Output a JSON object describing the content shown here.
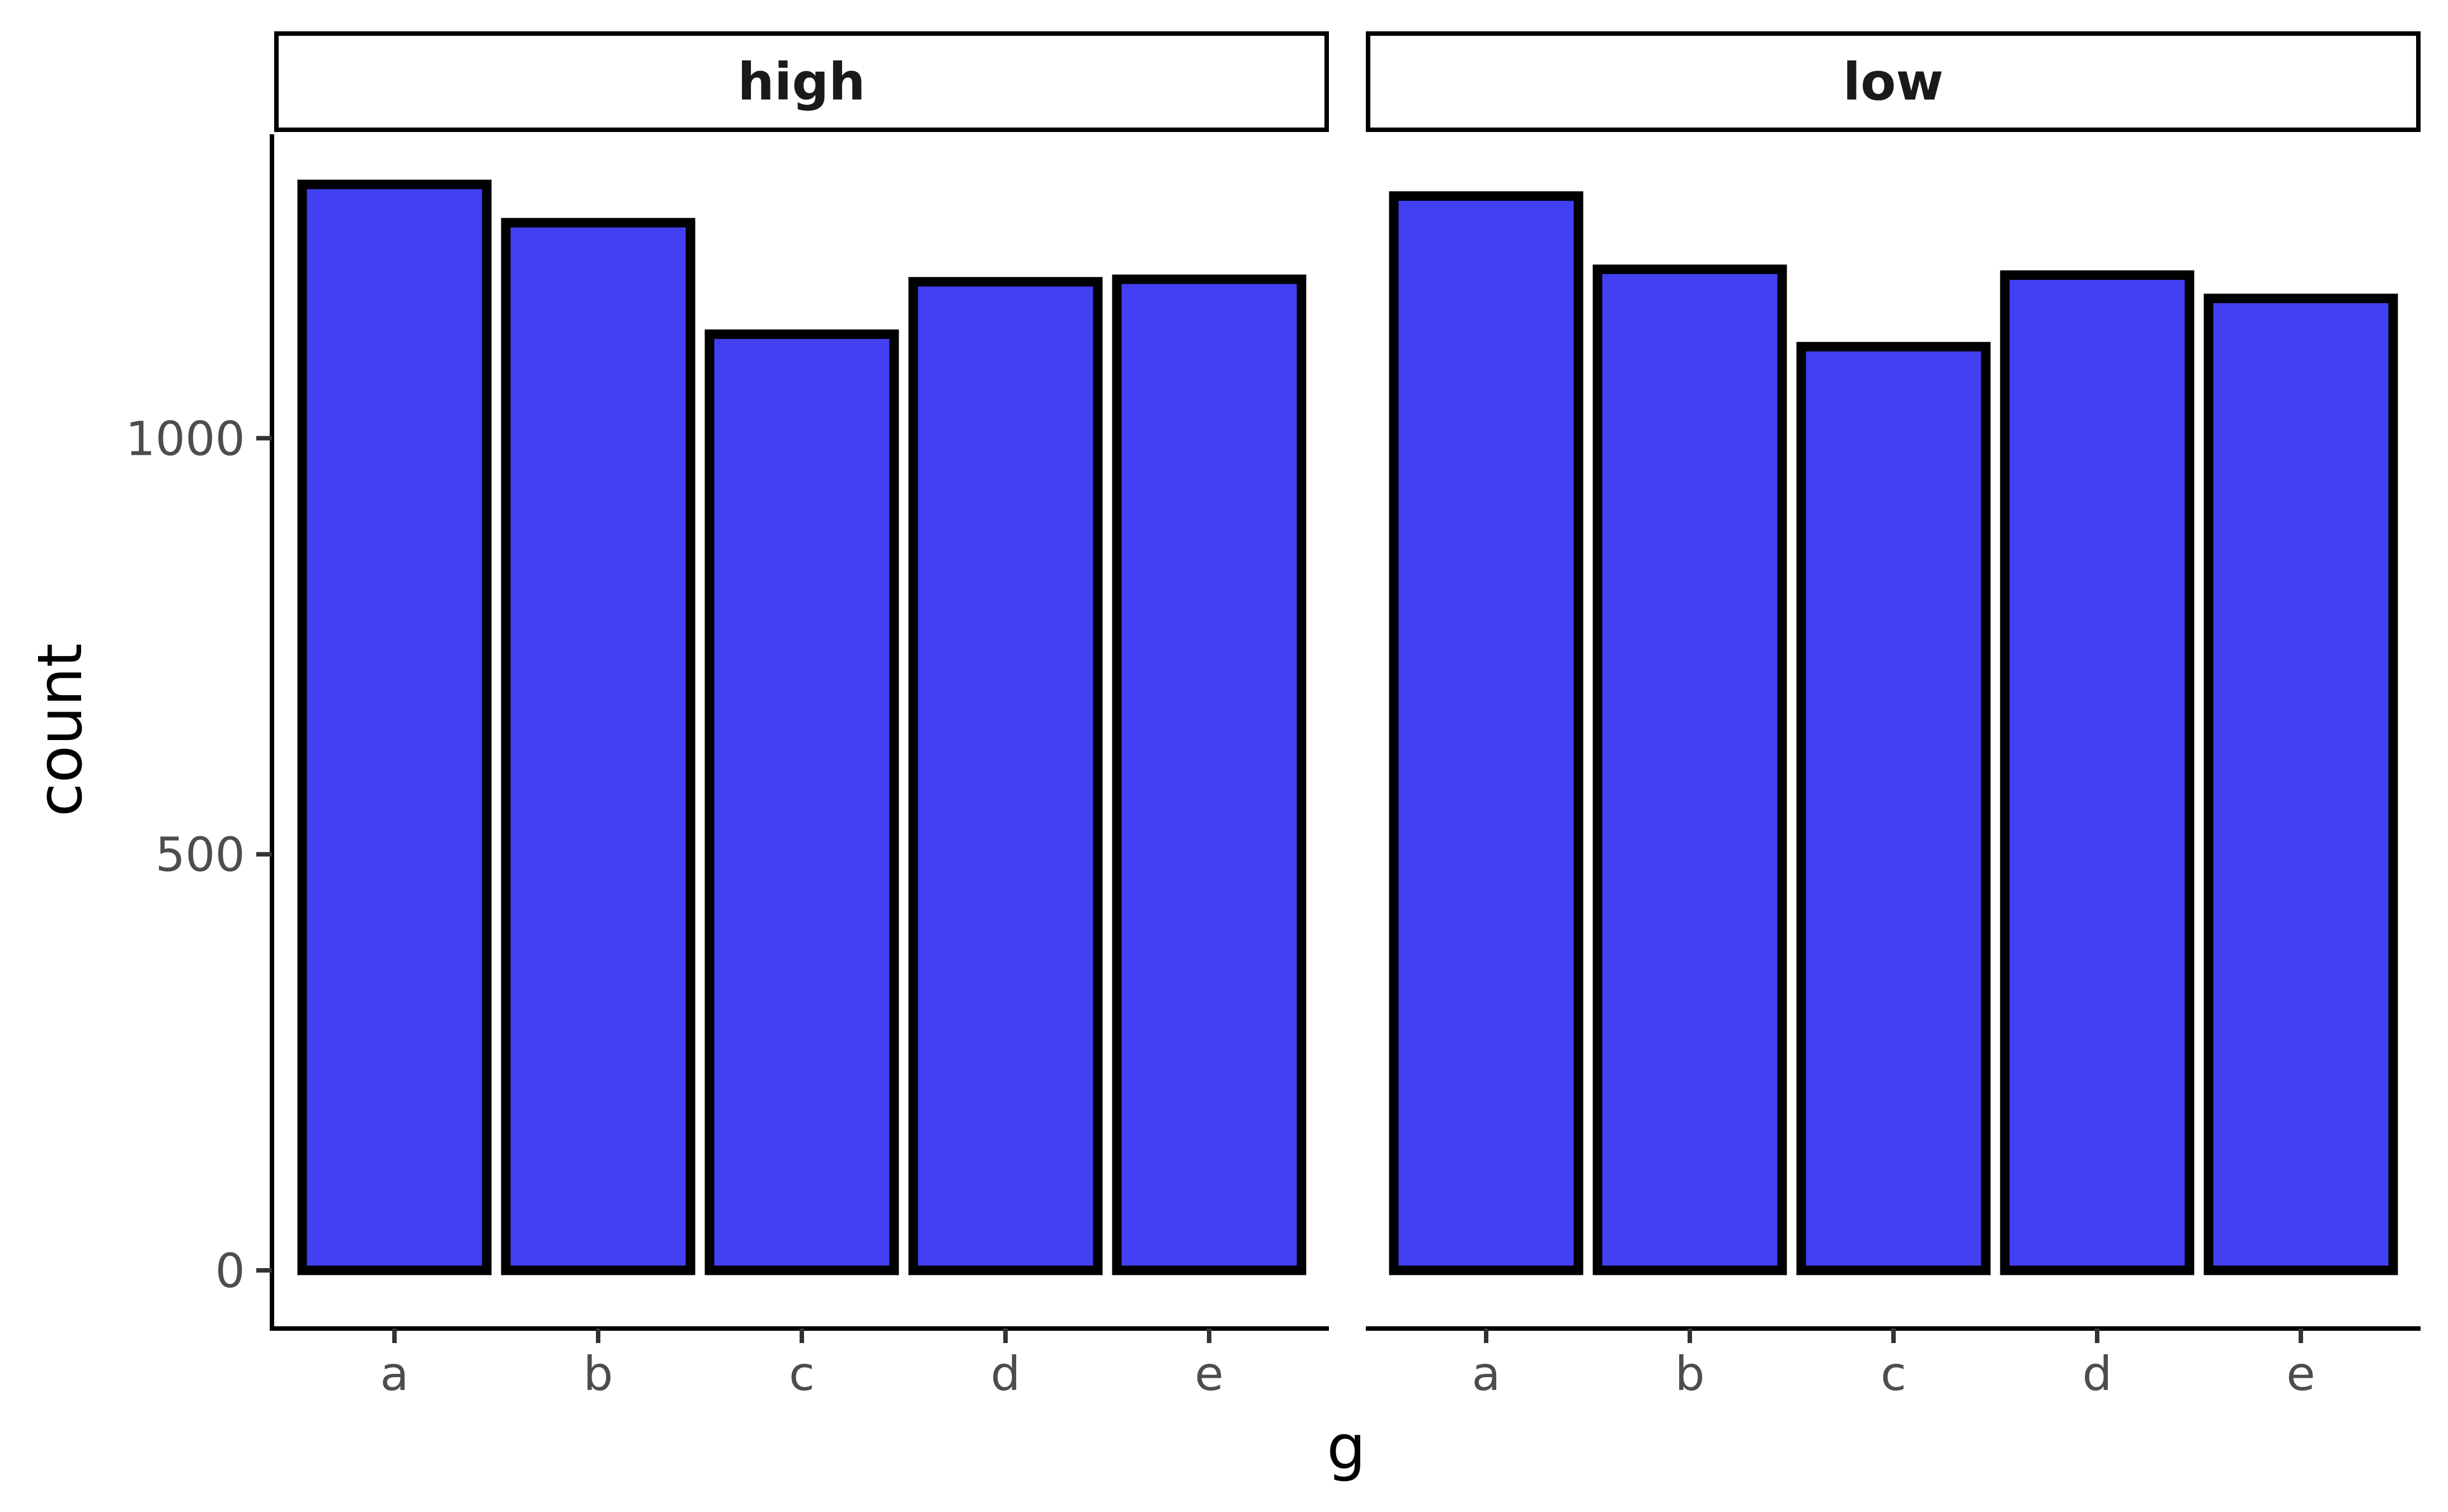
{
  "chart_data": {
    "type": "bar",
    "facet_by": "",
    "xlabel": "g",
    "ylabel": "count",
    "ylim": [
      0,
      1420
    ],
    "y_ticks": [
      0,
      500,
      1000
    ],
    "y_tick_labels": [
      "0",
      "500",
      "1000"
    ],
    "categories": [
      "a",
      "b",
      "c",
      "d",
      "e"
    ],
    "bar_fill": "#4240f2",
    "bar_outline": "#000000",
    "grid": false,
    "legend": "none",
    "panels": [
      {
        "label": "high",
        "values": [
          1305,
          1259,
          1125,
          1188,
          1191
        ]
      },
      {
        "label": "low",
        "values": [
          1291,
          1203,
          1110,
          1196,
          1168
        ]
      }
    ]
  }
}
